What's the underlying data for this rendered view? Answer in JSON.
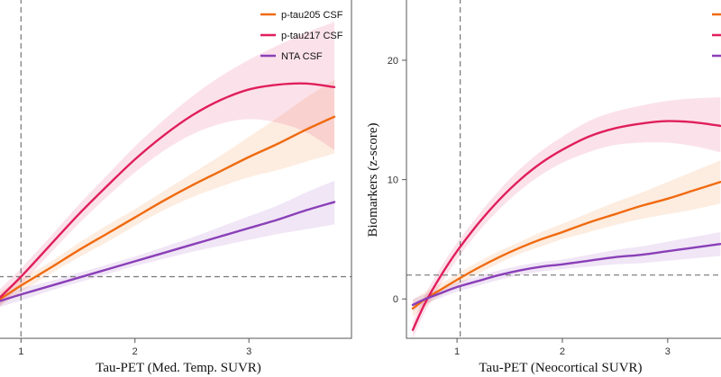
{
  "chart_data": [
    {
      "type": "line",
      "panel": "left",
      "title": "",
      "xlabel": "Tau-PET (Med. Temp. SUVR)",
      "ylabel": "",
      "xlim": [
        0.8,
        3.9
      ],
      "ylim": [
        -3.2,
        25.5
      ],
      "x_ticks": [
        "1",
        "2",
        "3"
      ],
      "x_tick_values": [
        1,
        2,
        3
      ],
      "y_ticks": [],
      "reference_lines": {
        "vertical_x": 1.0,
        "horizontal_y": 2.0
      },
      "legend": [
        "p-tau205 CSF",
        "p-tau217 CSF",
        "NTA CSF"
      ],
      "legend_position": "top-right",
      "series": [
        {
          "name": "p-tau205 CSF",
          "color": "#f06a0f",
          "x": [
            0.8,
            1.0,
            1.25,
            1.5,
            1.75,
            2.0,
            2.25,
            2.5,
            2.75,
            3.0,
            3.25,
            3.5,
            3.75
          ],
          "y": [
            0.0,
            1.25,
            2.7,
            4.2,
            5.6,
            7.0,
            8.4,
            9.7,
            10.9,
            12.1,
            13.2,
            14.4,
            15.5
          ],
          "lower": [
            -0.6,
            0.7,
            2.2,
            3.6,
            4.9,
            6.3,
            7.6,
            8.7,
            9.6,
            10.4,
            11.0,
            11.7,
            12.4
          ],
          "upper": [
            0.6,
            1.8,
            3.2,
            4.8,
            6.3,
            7.7,
            9.2,
            10.7,
            12.2,
            13.8,
            15.4,
            17.1,
            18.6
          ]
        },
        {
          "name": "p-tau217 CSF",
          "color": "#e01f5c",
          "x": [
            0.8,
            1.0,
            1.25,
            1.5,
            1.75,
            2.0,
            2.25,
            2.5,
            2.75,
            3.0,
            3.25,
            3.5,
            3.75
          ],
          "y": [
            0.1,
            2.0,
            4.6,
            7.2,
            9.6,
            11.9,
            13.9,
            15.6,
            16.9,
            17.8,
            18.2,
            18.3,
            18.0
          ],
          "lower": [
            -0.6,
            1.3,
            3.9,
            6.4,
            8.7,
            10.8,
            12.6,
            14.0,
            14.9,
            15.3,
            15.0,
            14.2,
            12.7
          ],
          "upper": [
            0.8,
            2.7,
            5.3,
            8.0,
            10.5,
            13.0,
            15.2,
            17.2,
            18.9,
            20.3,
            21.5,
            22.6,
            23.5
          ]
        },
        {
          "name": "NTA CSF",
          "color": "#8a3fb8",
          "x": [
            0.8,
            1.0,
            1.25,
            1.5,
            1.75,
            2.0,
            2.25,
            2.5,
            2.75,
            3.0,
            3.25,
            3.5,
            3.75
          ],
          "y": [
            -0.1,
            0.5,
            1.2,
            1.9,
            2.6,
            3.3,
            4.0,
            4.7,
            5.4,
            6.1,
            6.8,
            7.6,
            8.3
          ],
          "lower": [
            -0.6,
            0.0,
            0.8,
            1.5,
            2.2,
            2.9,
            3.5,
            4.1,
            4.6,
            5.1,
            5.6,
            6.0,
            6.4
          ],
          "upper": [
            0.4,
            1.0,
            1.6,
            2.3,
            3.0,
            3.7,
            4.5,
            5.3,
            6.2,
            7.1,
            8.0,
            9.1,
            10.1
          ]
        }
      ]
    },
    {
      "type": "line",
      "panel": "right",
      "title": "",
      "xlabel": "Tau-PET (Neocortical SUVR)",
      "ylabel": "Biomarkers (z-score)",
      "xlim": [
        0.52,
        3.6
      ],
      "ylim": [
        -3.3,
        25.2
      ],
      "x_ticks": [
        "1",
        "2",
        "3"
      ],
      "x_tick_values": [
        1,
        2,
        3
      ],
      "y_ticks": [
        "0",
        "10",
        "20"
      ],
      "y_tick_values": [
        0,
        10,
        20
      ],
      "reference_lines": {
        "vertical_x": 1.03,
        "horizontal_y": 2.0
      },
      "series": [
        {
          "name": "p-tau205 CSF",
          "color": "#f06a0f",
          "x": [
            0.58,
            0.7,
            0.85,
            1.0,
            1.2,
            1.4,
            1.6,
            1.8,
            2.0,
            2.25,
            2.5,
            2.75,
            3.0,
            3.25,
            3.5
          ],
          "y": [
            -0.8,
            0.0,
            0.8,
            1.6,
            2.6,
            3.5,
            4.3,
            5.0,
            5.6,
            6.4,
            7.1,
            7.8,
            8.4,
            9.1,
            9.8
          ],
          "lower": [
            -1.5,
            -0.6,
            0.3,
            1.1,
            2.1,
            3.0,
            3.8,
            4.4,
            5.0,
            5.6,
            6.2,
            6.7,
            7.1,
            7.5,
            8.0
          ],
          "upper": [
            -0.1,
            0.6,
            1.3,
            2.1,
            3.1,
            4.0,
            4.8,
            5.6,
            6.3,
            7.2,
            8.1,
            8.9,
            9.8,
            10.7,
            11.6
          ]
        },
        {
          "name": "p-tau217 CSF",
          "color": "#e01f5c",
          "x": [
            0.58,
            0.7,
            0.85,
            1.0,
            1.2,
            1.4,
            1.6,
            1.8,
            2.0,
            2.25,
            2.5,
            2.75,
            3.0,
            3.25,
            3.5
          ],
          "y": [
            -2.6,
            -0.3,
            2.0,
            4.0,
            6.3,
            8.3,
            10.0,
            11.4,
            12.5,
            13.6,
            14.3,
            14.7,
            14.9,
            14.8,
            14.5
          ],
          "lower": [
            -3.3,
            -1.0,
            1.3,
            3.3,
            5.6,
            7.5,
            9.1,
            10.4,
            11.4,
            12.3,
            12.9,
            13.1,
            13.1,
            12.8,
            12.3
          ],
          "upper": [
            -1.9,
            0.4,
            2.7,
            4.7,
            7.0,
            9.1,
            10.9,
            12.4,
            13.6,
            14.9,
            15.7,
            16.2,
            16.6,
            16.8,
            16.9
          ]
        },
        {
          "name": "NTA CSF",
          "color": "#8a3fb8",
          "x": [
            0.58,
            0.7,
            0.85,
            1.0,
            1.2,
            1.4,
            1.6,
            1.8,
            2.0,
            2.25,
            2.5,
            2.75,
            3.0,
            3.25,
            3.5
          ],
          "y": [
            -0.5,
            0.0,
            0.5,
            1.0,
            1.5,
            2.0,
            2.4,
            2.7,
            2.9,
            3.2,
            3.5,
            3.7,
            4.0,
            4.3,
            4.6
          ],
          "lower": [
            -1.0,
            -0.4,
            0.1,
            0.6,
            1.1,
            1.6,
            2.0,
            2.3,
            2.5,
            2.7,
            2.9,
            3.0,
            3.2,
            3.4,
            3.6
          ],
          "upper": [
            0.0,
            0.4,
            0.9,
            1.4,
            1.9,
            2.4,
            2.8,
            3.1,
            3.3,
            3.7,
            4.1,
            4.4,
            4.8,
            5.2,
            5.6
          ]
        }
      ]
    }
  ]
}
